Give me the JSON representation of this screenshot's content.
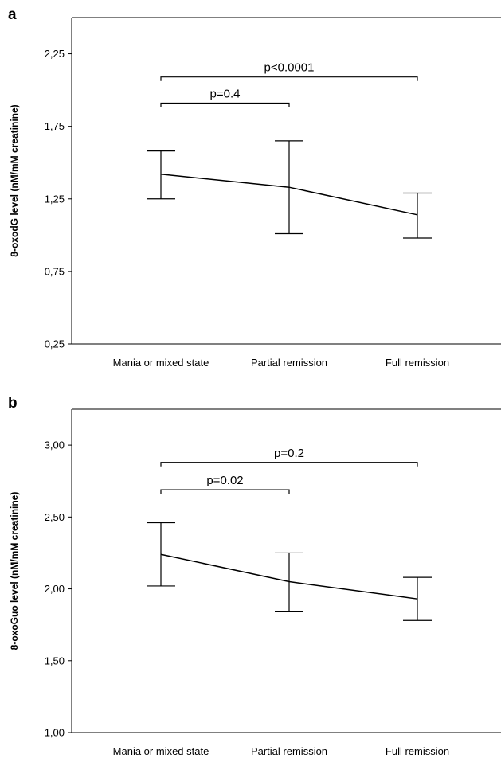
{
  "chart_data": [
    {
      "panel": "a",
      "type": "line",
      "title": "",
      "xlabel": "",
      "ylabel": "8-oxodG level (nM/mM creatinine)",
      "categories": [
        "Mania or mixed state",
        "Partial remission",
        "Full remission"
      ],
      "ylim": [
        0.25,
        2.5
      ],
      "yticks": [
        "0,25",
        "0,75",
        "1,25",
        "1,75",
        "2,25"
      ],
      "ytick_values": [
        0.25,
        0.75,
        1.25,
        1.75,
        2.25
      ],
      "series": [
        {
          "values": [
            1.42,
            1.33,
            1.14
          ],
          "error_low": [
            1.25,
            1.01,
            0.98
          ],
          "error_high": [
            1.58,
            1.65,
            1.29
          ]
        }
      ],
      "comparisons": [
        {
          "label": "p=0.4",
          "from": 0,
          "to": 1,
          "level": 1.91
        },
        {
          "label": "p<0.0001",
          "from": 0,
          "to": 2,
          "level": 2.09
        }
      ]
    },
    {
      "panel": "b",
      "type": "line",
      "title": "",
      "xlabel": "",
      "ylabel": "8-oxoGuo level (nM/mM creatinine)",
      "categories": [
        "Mania or mixed state",
        "Partial remission",
        "Full remission"
      ],
      "ylim": [
        1.0,
        3.25
      ],
      "yticks": [
        "1,00",
        "1,50",
        "2,00",
        "2,50",
        "3,00"
      ],
      "ytick_values": [
        1.0,
        1.5,
        2.0,
        2.5,
        3.0
      ],
      "series": [
        {
          "values": [
            2.24,
            2.05,
            1.93
          ],
          "error_low": [
            2.02,
            1.84,
            1.78
          ],
          "error_high": [
            2.46,
            2.25,
            2.08
          ]
        }
      ],
      "comparisons": [
        {
          "label": "p=0.02",
          "from": 0,
          "to": 1,
          "level": 2.69
        },
        {
          "label": "p=0.2",
          "from": 0,
          "to": 2,
          "level": 2.88
        }
      ]
    }
  ]
}
